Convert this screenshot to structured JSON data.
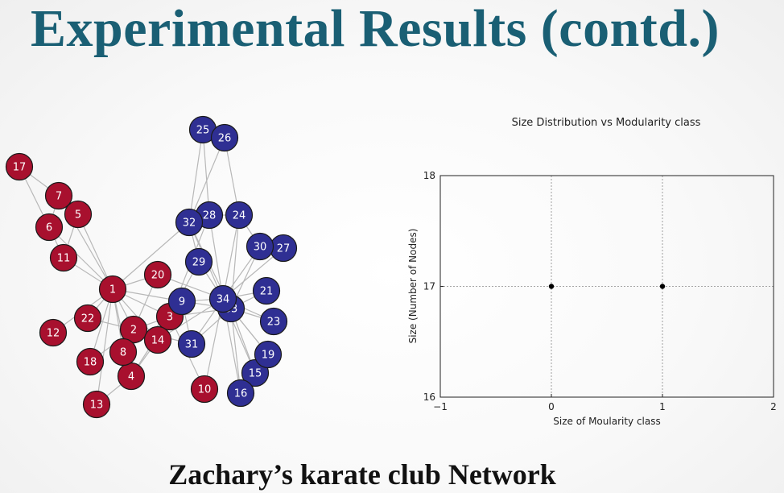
{
  "slide": {
    "title": "Experimental Results (contd.)",
    "caption": "Zachary’s karate club Network"
  },
  "colors": {
    "title": "#1a5f74",
    "community_red": "#a8102e",
    "community_blue": "#2f2f93",
    "edge": "#b8b8b8"
  },
  "chart_data": [
    {
      "type": "graph",
      "nodes": [
        {
          "id": "1",
          "group": "red"
        },
        {
          "id": "2",
          "group": "red"
        },
        {
          "id": "3",
          "group": "red"
        },
        {
          "id": "4",
          "group": "red"
        },
        {
          "id": "5",
          "group": "red"
        },
        {
          "id": "6",
          "group": "red"
        },
        {
          "id": "7",
          "group": "red"
        },
        {
          "id": "8",
          "group": "red"
        },
        {
          "id": "9",
          "group": "blue"
        },
        {
          "id": "10",
          "group": "red"
        },
        {
          "id": "11",
          "group": "red"
        },
        {
          "id": "12",
          "group": "red"
        },
        {
          "id": "13",
          "group": "red"
        },
        {
          "id": "14",
          "group": "red"
        },
        {
          "id": "15",
          "group": "blue"
        },
        {
          "id": "16",
          "group": "blue"
        },
        {
          "id": "17",
          "group": "red"
        },
        {
          "id": "18",
          "group": "red"
        },
        {
          "id": "19",
          "group": "blue"
        },
        {
          "id": "20",
          "group": "red"
        },
        {
          "id": "21",
          "group": "blue"
        },
        {
          "id": "22",
          "group": "red"
        },
        {
          "id": "23",
          "group": "blue"
        },
        {
          "id": "24",
          "group": "blue"
        },
        {
          "id": "25",
          "group": "blue"
        },
        {
          "id": "26",
          "group": "blue"
        },
        {
          "id": "27",
          "group": "blue"
        },
        {
          "id": "28",
          "group": "blue"
        },
        {
          "id": "29",
          "group": "blue"
        },
        {
          "id": "30",
          "group": "blue"
        },
        {
          "id": "31",
          "group": "blue"
        },
        {
          "id": "32",
          "group": "blue"
        },
        {
          "id": "33",
          "group": "blue"
        },
        {
          "id": "34",
          "group": "blue"
        }
      ],
      "edges": [
        [
          "1",
          "2"
        ],
        [
          "1",
          "3"
        ],
        [
          "1",
          "4"
        ],
        [
          "1",
          "5"
        ],
        [
          "1",
          "6"
        ],
        [
          "1",
          "7"
        ],
        [
          "1",
          "8"
        ],
        [
          "1",
          "9"
        ],
        [
          "1",
          "11"
        ],
        [
          "1",
          "12"
        ],
        [
          "1",
          "13"
        ],
        [
          "1",
          "14"
        ],
        [
          "1",
          "18"
        ],
        [
          "1",
          "20"
        ],
        [
          "1",
          "22"
        ],
        [
          "1",
          "32"
        ],
        [
          "2",
          "3"
        ],
        [
          "2",
          "4"
        ],
        [
          "2",
          "8"
        ],
        [
          "2",
          "14"
        ],
        [
          "2",
          "18"
        ],
        [
          "2",
          "20"
        ],
        [
          "2",
          "22"
        ],
        [
          "2",
          "31"
        ],
        [
          "3",
          "4"
        ],
        [
          "3",
          "8"
        ],
        [
          "3",
          "9"
        ],
        [
          "3",
          "10"
        ],
        [
          "3",
          "14"
        ],
        [
          "3",
          "28"
        ],
        [
          "3",
          "29"
        ],
        [
          "3",
          "33"
        ],
        [
          "4",
          "8"
        ],
        [
          "4",
          "13"
        ],
        [
          "4",
          "14"
        ],
        [
          "5",
          "7"
        ],
        [
          "5",
          "11"
        ],
        [
          "6",
          "7"
        ],
        [
          "6",
          "11"
        ],
        [
          "6",
          "17"
        ],
        [
          "7",
          "17"
        ],
        [
          "9",
          "31"
        ],
        [
          "9",
          "33"
        ],
        [
          "9",
          "34"
        ],
        [
          "10",
          "34"
        ],
        [
          "14",
          "34"
        ],
        [
          "15",
          "33"
        ],
        [
          "15",
          "34"
        ],
        [
          "16",
          "33"
        ],
        [
          "16",
          "34"
        ],
        [
          "19",
          "33"
        ],
        [
          "19",
          "34"
        ],
        [
          "20",
          "34"
        ],
        [
          "21",
          "33"
        ],
        [
          "21",
          "34"
        ],
        [
          "23",
          "33"
        ],
        [
          "23",
          "34"
        ],
        [
          "24",
          "26"
        ],
        [
          "24",
          "28"
        ],
        [
          "24",
          "30"
        ],
        [
          "24",
          "33"
        ],
        [
          "24",
          "34"
        ],
        [
          "25",
          "26"
        ],
        [
          "25",
          "28"
        ],
        [
          "25",
          "32"
        ],
        [
          "26",
          "32"
        ],
        [
          "27",
          "30"
        ],
        [
          "27",
          "34"
        ],
        [
          "28",
          "34"
        ],
        [
          "29",
          "32"
        ],
        [
          "29",
          "34"
        ],
        [
          "30",
          "33"
        ],
        [
          "30",
          "34"
        ],
        [
          "31",
          "33"
        ],
        [
          "31",
          "34"
        ],
        [
          "32",
          "33"
        ],
        [
          "32",
          "34"
        ],
        [
          "33",
          "34"
        ]
      ]
    },
    {
      "type": "scatter",
      "title": "Size Distribution vs Modularity class",
      "xlabel": "Size of Moularity class",
      "ylabel": "Size (Number of Nodes)",
      "xlim": [
        -1,
        2
      ],
      "ylim": [
        16,
        18
      ],
      "xticks": [
        -1,
        0,
        1,
        2
      ],
      "yticks": [
        16,
        17,
        18
      ],
      "xtick_labels": [
        "−1",
        "0",
        "1",
        "2"
      ],
      "ytick_labels": [
        "16",
        "17",
        "18"
      ],
      "grid": true,
      "points": [
        {
          "x": 0,
          "y": 17
        },
        {
          "x": 1,
          "y": 17
        }
      ]
    }
  ]
}
